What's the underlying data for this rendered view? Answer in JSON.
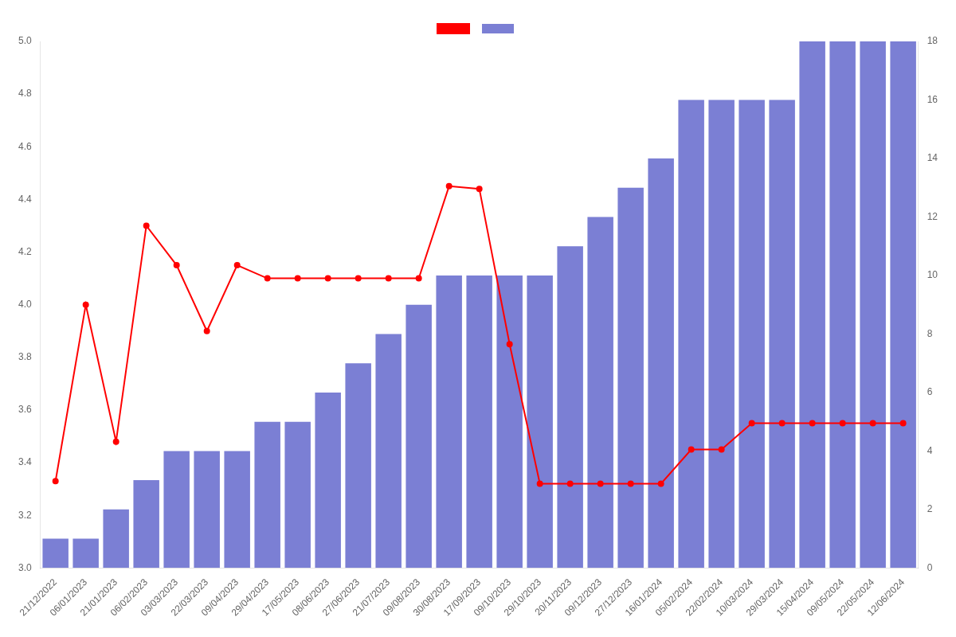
{
  "chart_data": {
    "type": "bar",
    "categories": [
      "21/12/2022",
      "06/01/2023",
      "21/01/2023",
      "06/02/2023",
      "03/03/2023",
      "22/03/2023",
      "09/04/2023",
      "29/04/2023",
      "17/05/2023",
      "08/06/2023",
      "27/06/2023",
      "21/07/2023",
      "09/08/2023",
      "30/08/2023",
      "17/09/2023",
      "09/10/2023",
      "29/10/2023",
      "20/11/2023",
      "09/12/2023",
      "27/12/2023",
      "16/01/2024",
      "05/02/2024",
      "22/02/2024",
      "10/03/2024",
      "29/03/2024",
      "15/04/2024",
      "09/05/2024",
      "22/05/2024",
      "12/06/2024"
    ],
    "series": [
      {
        "type": "line",
        "color": "#ff0000",
        "marker": "o",
        "values": [
          3.33,
          4.0,
          3.48,
          4.3,
          4.15,
          3.9,
          4.15,
          4.1,
          4.1,
          4.1,
          4.1,
          4.1,
          4.1,
          4.45,
          4.44,
          3.85,
          3.32,
          3.32,
          3.32,
          3.32,
          3.32,
          3.45,
          3.45,
          3.55,
          3.55,
          3.55,
          3.55,
          3.55,
          3.55
        ]
      },
      {
        "type": "bar",
        "color": "#7B7FD4",
        "axis": "y2",
        "values": [
          1,
          1,
          2,
          3,
          4,
          4,
          4,
          5,
          5,
          6,
          7,
          8,
          9,
          10,
          10,
          10,
          10,
          11,
          12,
          13,
          14,
          16,
          16,
          16,
          16,
          18,
          18,
          18,
          18
        ]
      }
    ],
    "ylim": [
      3.0,
      5.0
    ],
    "yticks": [
      {
        "value": 3.0,
        "label": "3.0"
      },
      3.2,
      3.4,
      3.6,
      3.8,
      {
        "value": 4.0,
        "label": "4.0"
      },
      4.2,
      4.4,
      4.6,
      4.8,
      {
        "value": 5.0,
        "label": "5.0"
      }
    ],
    "y2lim": [
      0,
      18
    ],
    "y2ticks": [
      0,
      2,
      4,
      6,
      8,
      10,
      12,
      14,
      16,
      18
    ],
    "grid": false,
    "legend": "top"
  }
}
